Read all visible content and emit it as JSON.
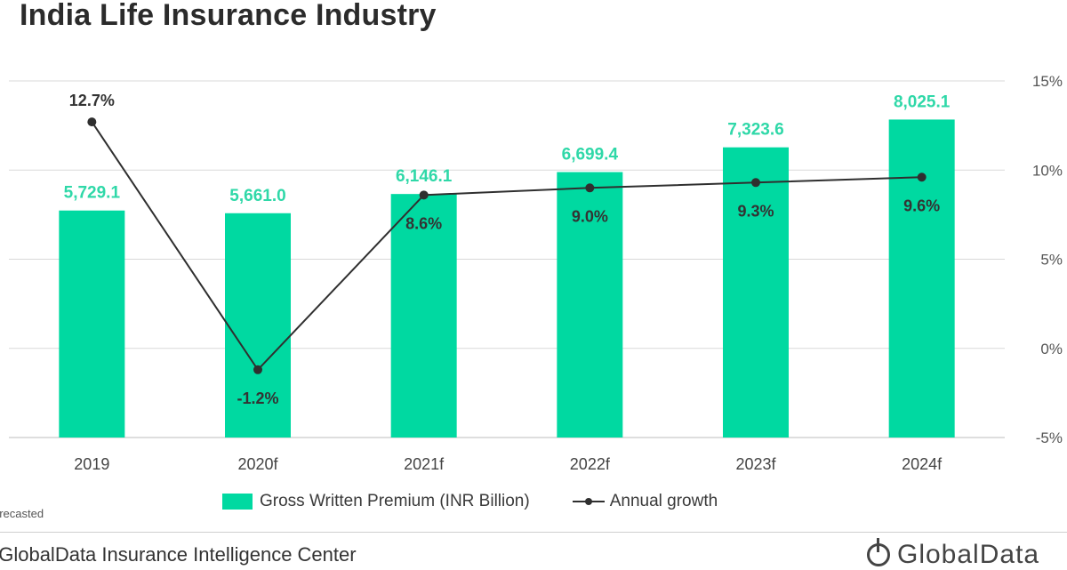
{
  "title": "India Life Insurance Industry",
  "legend": {
    "bars": "Gross Written Premium (INR Billion)",
    "line": "Annual growth"
  },
  "footnote": "orecasted",
  "source": ": GlobalData Insurance Intelligence Center",
  "logo": "GlobalData",
  "colors": {
    "bar": "#00d9a1",
    "bar_label": "#2fd8a8",
    "line": "#2f2f2f",
    "grid": "#d9d9d9"
  },
  "chart_data": {
    "type": "bar",
    "categories": [
      "2019",
      "2020f",
      "2021f",
      "2022f",
      "2023f",
      "2024f"
    ],
    "series": [
      {
        "name": "Gross Written Premium (INR Billion)",
        "type": "bar",
        "axis": "left",
        "values": [
          5729.1,
          5661.0,
          6146.1,
          6699.4,
          7323.6,
          8025.1
        ],
        "labels": [
          "5,729.1",
          "5,661.0",
          "6,146.1",
          "6,699.4",
          "7,323.6",
          "8,025.1"
        ]
      },
      {
        "name": "Annual growth",
        "type": "line",
        "axis": "right",
        "values": [
          12.7,
          -1.2,
          8.6,
          9.0,
          9.3,
          9.6
        ],
        "labels": [
          "12.7%",
          "-1.2%",
          "8.6%",
          "9.0%",
          "9.3%",
          "9.6%"
        ]
      }
    ],
    "y2_ticks": [
      "15%",
      "10%",
      "5%",
      "0%",
      "-5%"
    ],
    "y2lim": [
      -5,
      15
    ],
    "ylim": [
      0,
      9000
    ],
    "grid": true,
    "legend_position": "bottom"
  }
}
